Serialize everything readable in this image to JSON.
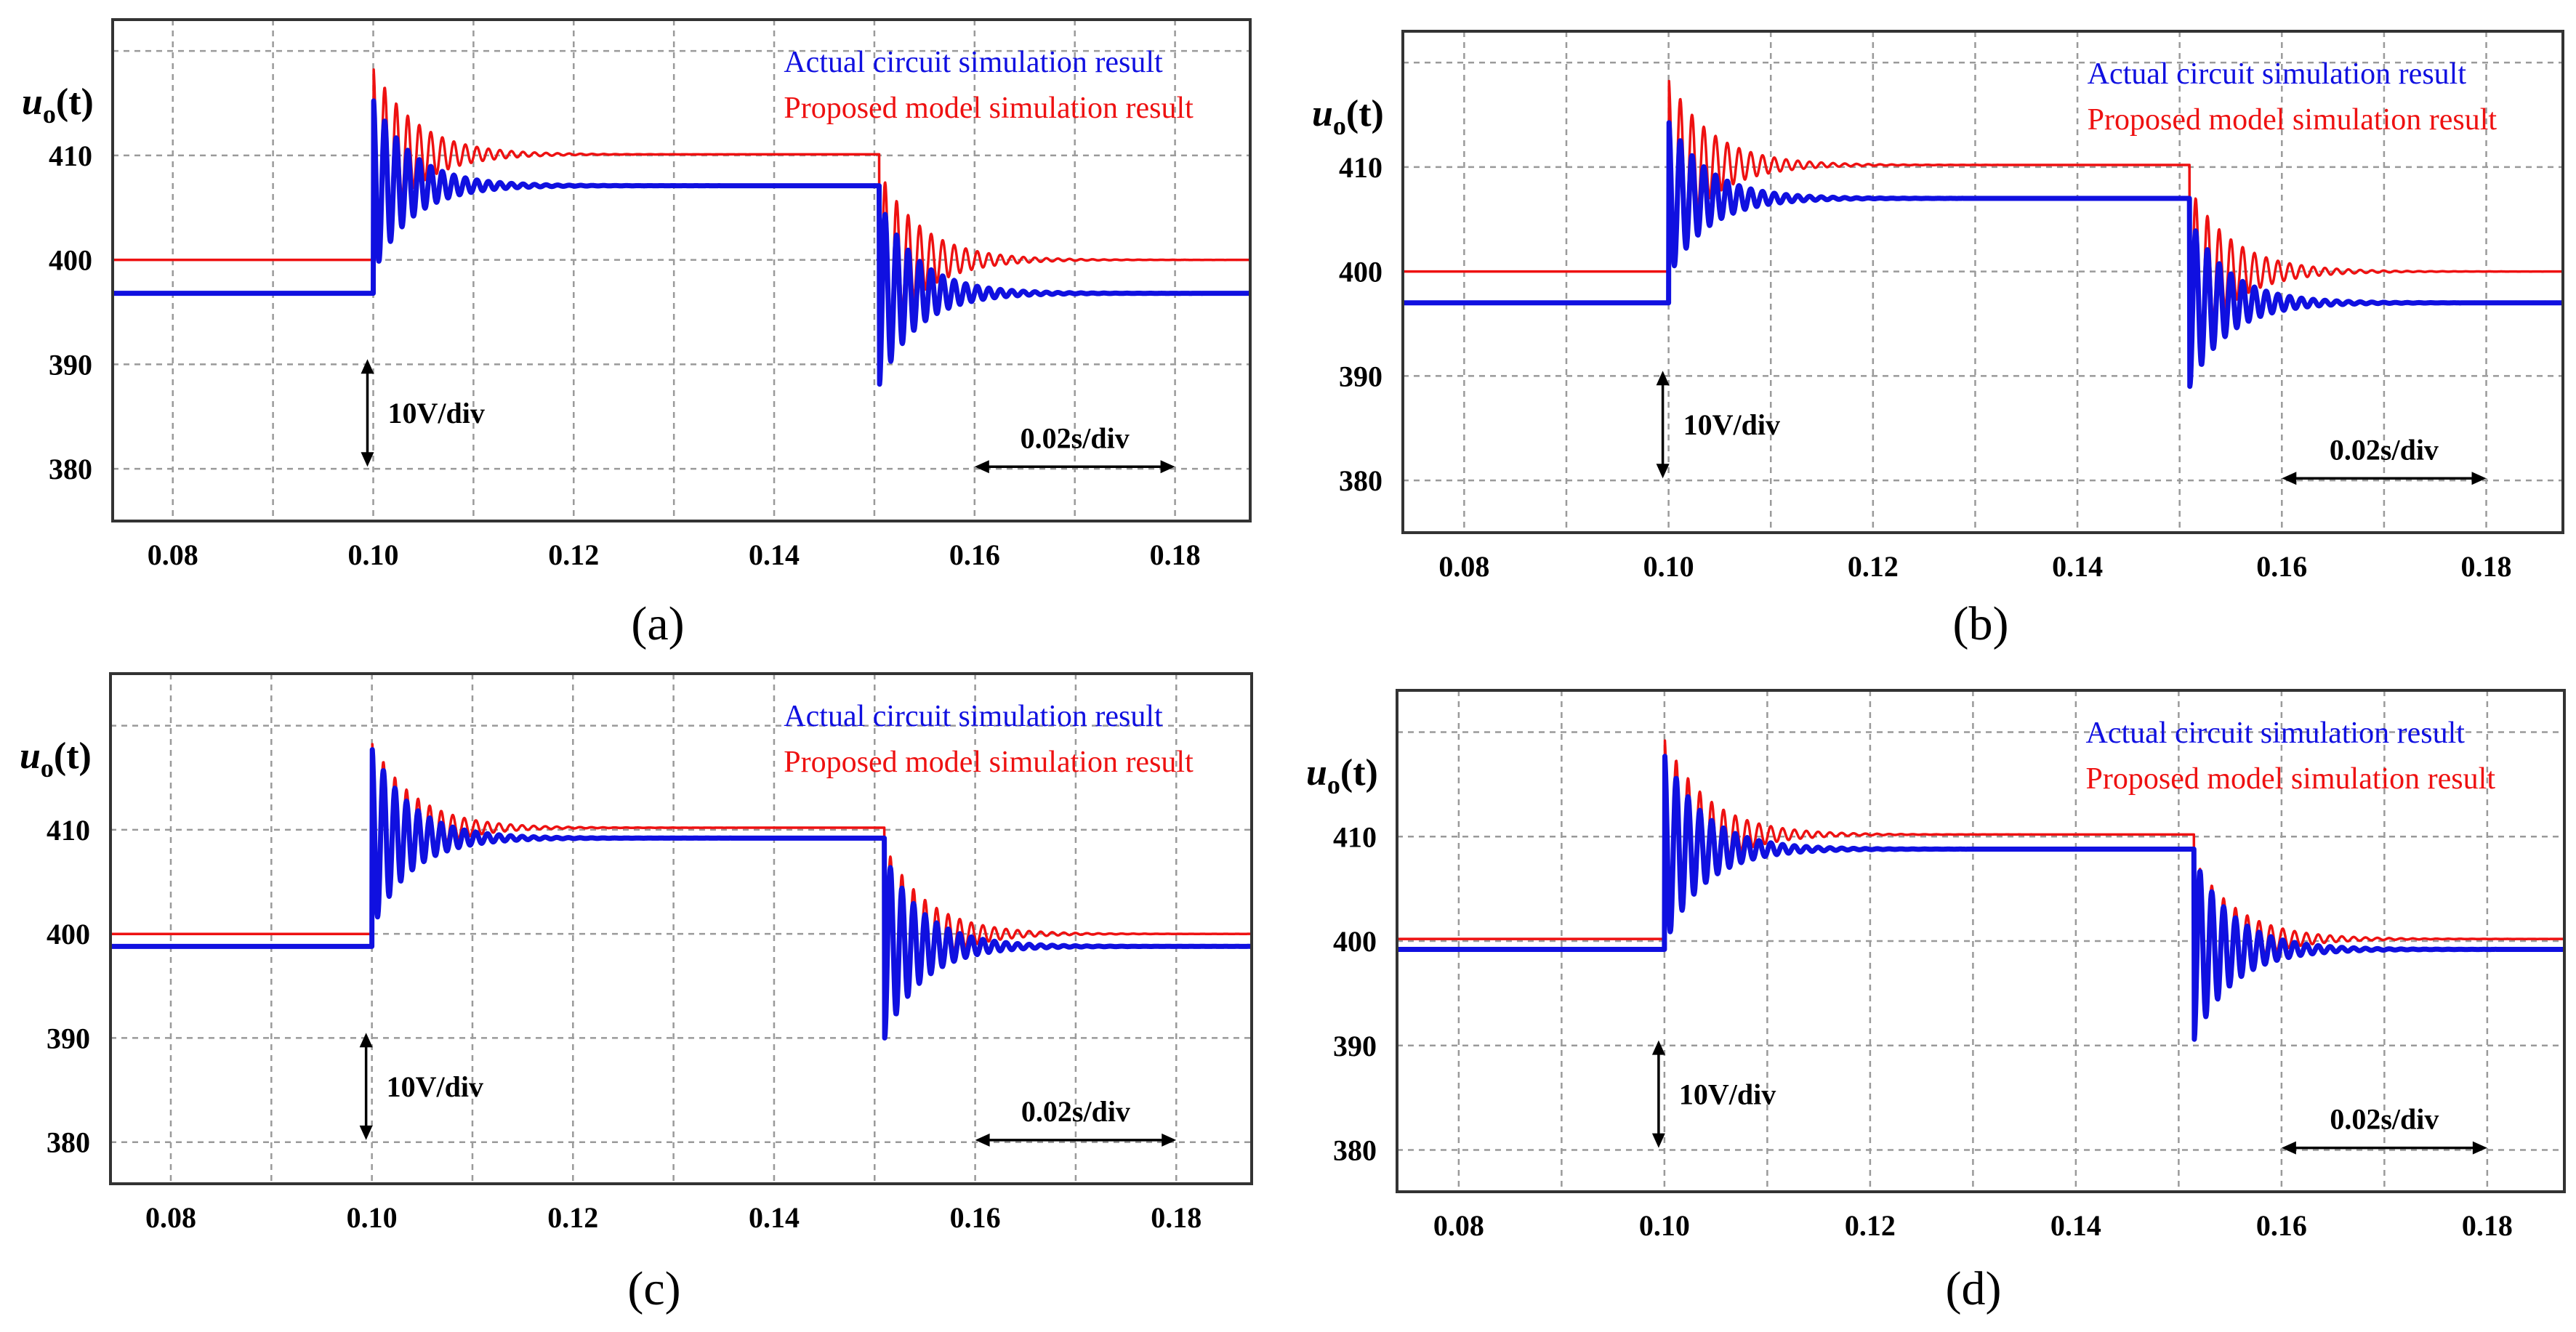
{
  "figure": {
    "colors": {
      "actual": "#1010e0",
      "model": "#ee1111",
      "frame": "#333333",
      "grid": "#9a9a9a",
      "text": "#000000"
    },
    "panels": [
      {
        "caption": "(a)",
        "ylabel_main": "u",
        "ylabel_sub": "o",
        "ylabel_tail": "(t)",
        "amp_label": "10V/div",
        "time_label": "0.02s/div",
        "legend": [
          "Actual circuit simulation result",
          "Proposed model simulation result"
        ],
        "chart_data": {
          "type": "line",
          "xlim": [
            0.074,
            0.1875
          ],
          "ylim": [
            375.0,
            423.0
          ],
          "xticks": [
            "0.08",
            "0.10",
            "0.12",
            "0.14",
            "0.16",
            "0.18"
          ],
          "yticks": [
            "380",
            "390",
            "400",
            "410"
          ],
          "grid": true,
          "legend_position": "top-right",
          "series": [
            {
              "name": "Actual circuit simulation result",
              "color": "#1010e0",
              "step_time": 0.1,
              "step_back_time": 0.1505,
              "low_level": 396.8,
              "high_level": 407.1,
              "peak_up": 415.5,
              "trough_down": 388.0,
              "settled_low": 396.8
            },
            {
              "name": "Proposed model simulation result",
              "color": "#ee1111",
              "step_time": 0.1,
              "step_back_time": 0.1505,
              "low_level": 400.0,
              "high_level": 410.1,
              "peak_up": 418.5,
              "trough_down": 391.5,
              "settled_low": 400.0
            }
          ]
        }
      },
      {
        "caption": "(b)",
        "ylabel_main": "u",
        "ylabel_sub": "o",
        "ylabel_tail": "(t)",
        "amp_label": "10V/div",
        "time_label": "0.02s/div",
        "legend": [
          "Actual circuit simulation result",
          "Proposed model simulation result"
        ],
        "chart_data": {
          "type": "line",
          "xlim": [
            0.074,
            0.1875
          ],
          "ylim": [
            375.0,
            423.0
          ],
          "xticks": [
            "0.08",
            "0.10",
            "0.12",
            "0.14",
            "0.16",
            "0.18"
          ],
          "yticks": [
            "380",
            "390",
            "400",
            "410"
          ],
          "grid": true,
          "legend_position": "top-right",
          "series": [
            {
              "name": "Actual circuit simulation result",
              "color": "#1010e0",
              "step_time": 0.1,
              "step_back_time": 0.151,
              "low_level": 397.0,
              "high_level": 407.0,
              "peak_up": 414.5,
              "trough_down": 389.0,
              "settled_low": 397.0
            },
            {
              "name": "Proposed model simulation result",
              "color": "#ee1111",
              "step_time": 0.1,
              "step_back_time": 0.151,
              "low_level": 400.0,
              "high_level": 410.2,
              "peak_up": 418.5,
              "trough_down": 392.0,
              "settled_low": 400.0
            }
          ]
        }
      },
      {
        "caption": "(c)",
        "ylabel_main": "u",
        "ylabel_sub": "o",
        "ylabel_tail": "(t)",
        "amp_label": "10V/div",
        "time_label": "0.02s/div",
        "legend": [
          "Actual circuit simulation result",
          "Proposed model simulation result"
        ],
        "chart_data": {
          "type": "line",
          "xlim": [
            0.074,
            0.1875
          ],
          "ylim": [
            376.0,
            425.0
          ],
          "xticks": [
            "0.08",
            "0.10",
            "0.12",
            "0.14",
            "0.16",
            "0.18"
          ],
          "yticks": [
            "380",
            "390",
            "400",
            "410"
          ],
          "grid": true,
          "legend_position": "top-right",
          "series": [
            {
              "name": "Actual circuit simulation result",
              "color": "#1010e0",
              "step_time": 0.1,
              "step_back_time": 0.151,
              "low_level": 398.8,
              "high_level": 409.2,
              "peak_up": 418.0,
              "trough_down": 390.0,
              "settled_low": 398.8
            },
            {
              "name": "Proposed model simulation result",
              "color": "#ee1111",
              "step_time": 0.1,
              "step_back_time": 0.151,
              "low_level": 400.0,
              "high_level": 410.2,
              "peak_up": 418.5,
              "trough_down": 391.5,
              "settled_low": 400.0
            }
          ]
        }
      },
      {
        "caption": "(d)",
        "ylabel_main": "u",
        "ylabel_sub": "o",
        "ylabel_tail": "(t)",
        "amp_label": "10V/div",
        "time_label": "0.02s/div",
        "legend": [
          "Actual circuit simulation result",
          "Proposed model simulation result"
        ],
        "chart_data": {
          "type": "line",
          "xlim": [
            0.074,
            0.1875
          ],
          "ylim": [
            376.0,
            424.0
          ],
          "xticks": [
            "0.08",
            "0.10",
            "0.12",
            "0.14",
            "0.16",
            "0.18"
          ],
          "yticks": [
            "380",
            "390",
            "400",
            "410"
          ],
          "grid": true,
          "legend_position": "top-right",
          "series": [
            {
              "name": "Actual circuit simulation result",
              "color": "#1010e0",
              "step_time": 0.1,
              "step_back_time": 0.1515,
              "low_level": 399.2,
              "high_level": 408.8,
              "peak_up": 418.0,
              "trough_down": 390.5,
              "settled_low": 399.2
            },
            {
              "name": "Proposed model simulation result",
              "color": "#ee1111",
              "step_time": 0.1,
              "step_back_time": 0.1515,
              "low_level": 400.2,
              "high_level": 410.2,
              "peak_up": 419.5,
              "trough_down": 392.5,
              "settled_low": 400.2
            }
          ]
        }
      }
    ]
  }
}
